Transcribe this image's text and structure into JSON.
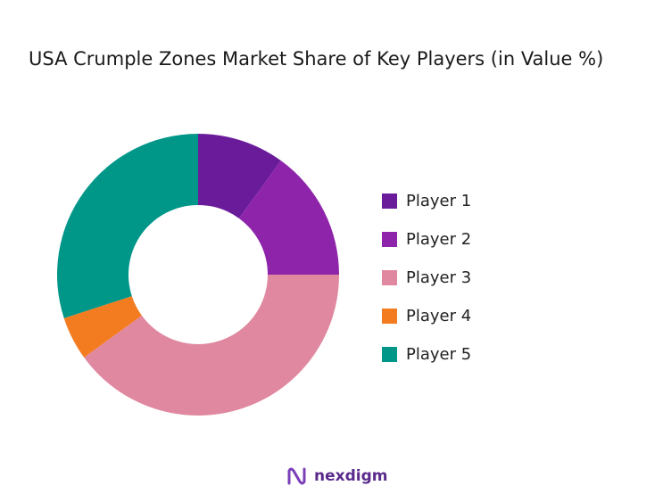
{
  "chart_data": {
    "type": "pie",
    "donut": true,
    "title": "USA Crumple Zones Market Share of Key Players (in Value %)",
    "categories": [
      "Player 1",
      "Player 2",
      "Player 3",
      "Player 4",
      "Player 5"
    ],
    "values": [
      10,
      15,
      40,
      5,
      30
    ],
    "colors": [
      "#6a1b9a",
      "#8e24aa",
      "#e0889f",
      "#f47c20",
      "#009688"
    ],
    "legend": "right"
  },
  "brand": {
    "name": "nexdigm"
  }
}
